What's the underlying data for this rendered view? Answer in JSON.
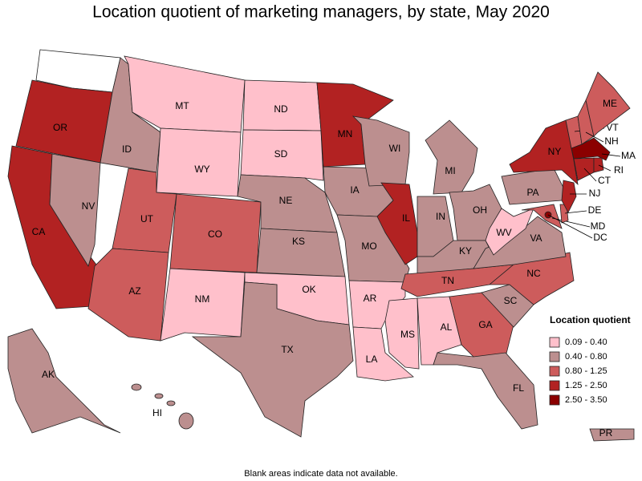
{
  "title": "Location quotient of marketing managers, by state, May 2020",
  "map": {
    "states": [
      {
        "abbr": "OR",
        "bin": 3
      },
      {
        "abbr": "CA",
        "bin": 3
      },
      {
        "abbr": "NV",
        "bin": 1
      },
      {
        "abbr": "ID",
        "bin": 1
      },
      {
        "abbr": "MT",
        "bin": 0
      },
      {
        "abbr": "WY",
        "bin": 0
      },
      {
        "abbr": "UT",
        "bin": 2
      },
      {
        "abbr": "AZ",
        "bin": 2
      },
      {
        "abbr": "CO",
        "bin": 2
      },
      {
        "abbr": "NM",
        "bin": 0
      },
      {
        "abbr": "ND",
        "bin": 0
      },
      {
        "abbr": "SD",
        "bin": 0
      },
      {
        "abbr": "NE",
        "bin": 1
      },
      {
        "abbr": "KS",
        "bin": 1
      },
      {
        "abbr": "OK",
        "bin": 0
      },
      {
        "abbr": "TX",
        "bin": 1
      },
      {
        "abbr": "MN",
        "bin": 3
      },
      {
        "abbr": "IA",
        "bin": 1
      },
      {
        "abbr": "MO",
        "bin": 1
      },
      {
        "abbr": "AR",
        "bin": 0
      },
      {
        "abbr": "LA",
        "bin": 0
      },
      {
        "abbr": "WI",
        "bin": 1
      },
      {
        "abbr": "IL",
        "bin": 3
      },
      {
        "abbr": "MI",
        "bin": 1
      },
      {
        "abbr": "IN",
        "bin": 1
      },
      {
        "abbr": "OH",
        "bin": 1
      },
      {
        "abbr": "KY",
        "bin": 1
      },
      {
        "abbr": "TN",
        "bin": 2
      },
      {
        "abbr": "MS",
        "bin": 0
      },
      {
        "abbr": "AL",
        "bin": 0
      },
      {
        "abbr": "GA",
        "bin": 2
      },
      {
        "abbr": "FL",
        "bin": 1
      },
      {
        "abbr": "SC",
        "bin": 1
      },
      {
        "abbr": "NC",
        "bin": 2
      },
      {
        "abbr": "VA",
        "bin": 1
      },
      {
        "abbr": "WV",
        "bin": 0
      },
      {
        "abbr": "PA",
        "bin": 1
      },
      {
        "abbr": "NY",
        "bin": 3
      },
      {
        "abbr": "MD",
        "bin": 2
      },
      {
        "abbr": "DE",
        "bin": 2
      },
      {
        "abbr": "NJ",
        "bin": 3
      },
      {
        "abbr": "VT",
        "bin": 2
      },
      {
        "abbr": "NH",
        "bin": 2
      },
      {
        "abbr": "ME",
        "bin": 2
      },
      {
        "abbr": "MA",
        "bin": 4
      },
      {
        "abbr": "CT",
        "bin": 3
      },
      {
        "abbr": "RI",
        "bin": 3
      },
      {
        "abbr": "DC",
        "bin": 4
      },
      {
        "abbr": "AK",
        "bin": 1
      },
      {
        "abbr": "HI",
        "bin": 1
      },
      {
        "abbr": "PR",
        "bin": 1
      }
    ]
  },
  "legend": {
    "title": "Location quotient",
    "items": [
      {
        "label": "0.09 - 0.40",
        "color": "#ffc0cb"
      },
      {
        "label": "0.40 - 0.80",
        "color": "#bc8f8f"
      },
      {
        "label": "0.80 - 1.25",
        "color": "#cd5c5c"
      },
      {
        "label": "1.25 - 2.50",
        "color": "#b22222"
      },
      {
        "label": "2.50 - 3.50",
        "color": "#8b0000"
      }
    ]
  },
  "note": "Blank areas indicate data not available."
}
